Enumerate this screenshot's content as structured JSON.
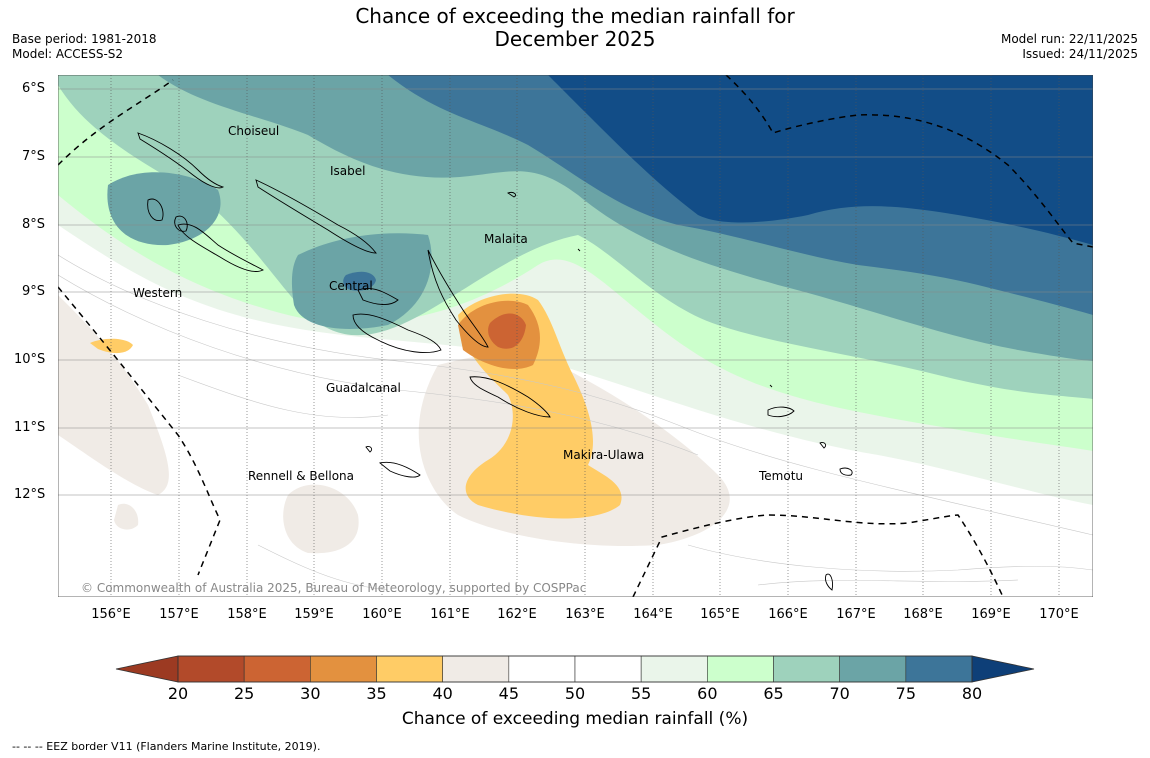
{
  "title": {
    "line1": "Chance of exceeding the median rainfall for",
    "line2": "December 2025"
  },
  "meta_left": {
    "base_period": "Base period: 1981-2018",
    "model": "Model: ACCESS-S2"
  },
  "meta_right": {
    "model_run": "Model run: 22/11/2025",
    "issued": "Issued: 24/11/2025"
  },
  "map": {
    "latitude_labels": [
      "6°S",
      "7°S",
      "8°S",
      "9°S",
      "10°S",
      "11°S",
      "12°S"
    ],
    "longitude_labels": [
      "156°E",
      "157°E",
      "158°E",
      "159°E",
      "160°E",
      "161°E",
      "162°E",
      "163°E",
      "164°E",
      "165°E",
      "166°E",
      "167°E",
      "168°E",
      "169°E",
      "170°E"
    ],
    "regions": {
      "choiseul": "Choiseul",
      "isabel": "Isabel",
      "malaita": "Malaita",
      "western": "Western",
      "central": "Central",
      "guadalcanal": "Guadalcanal",
      "makira_ulawa": "Makira-Ulawa",
      "rennell_bellona": "Rennell & Bellona",
      "temotu": "Temotu"
    },
    "copyright": "© Commonwealth of Australia 2025, Bureau of Meteorology, supported by COSPPac"
  },
  "colorbar": {
    "tick_labels": [
      "20",
      "25",
      "30",
      "35",
      "40",
      "45",
      "50",
      "55",
      "60",
      "65",
      "70",
      "75",
      "80"
    ],
    "colors": [
      "#b24a2a",
      "#cc6433",
      "#e3913f",
      "#ffcc66",
      "#f0ebe6",
      "#ffffff",
      "#ffffff",
      "#eaf5ea",
      "#ccffcc",
      "#9ed2bc",
      "#6ba4a6",
      "#3d7599",
      "#124d87"
    ],
    "under_color": "#9c3a22",
    "over_color": "#0e3f78",
    "label": "Chance of exceeding median rainfall (%)"
  },
  "footnote": "--  --  -- EEZ border V11 (Flanders Marine Institute, 2019)."
}
